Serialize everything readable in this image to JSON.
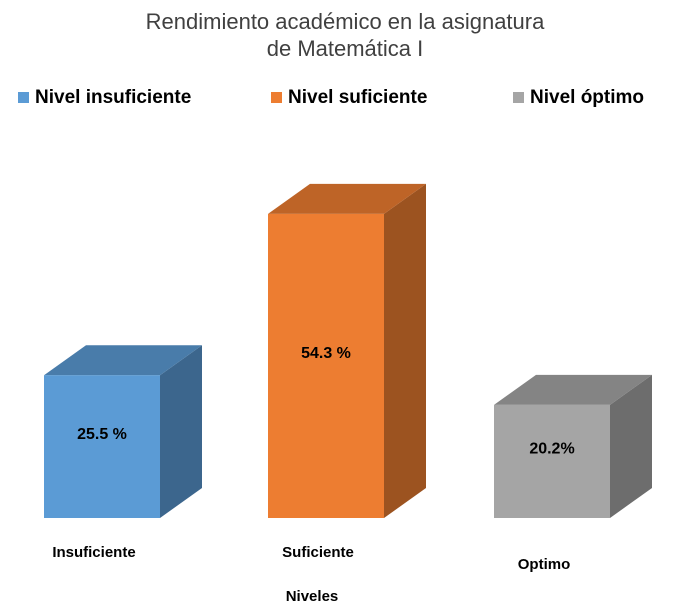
{
  "chart_data": {
    "type": "bar3d",
    "title": "Rendimiento académico en la asignatura de Matemática I",
    "legend": [
      "Nivel insuficiente",
      "Nivel suficiente",
      "Nivel óptimo"
    ],
    "categories": [
      "Insuficiente",
      "Suficiente",
      "Optimo"
    ],
    "values": [
      25.5,
      54.3,
      20.2
    ],
    "value_labels": [
      "25.5 %",
      "54.3 %",
      "20.2%"
    ],
    "colors": [
      "#5b9bd5",
      "#ed7d31",
      "#a5a5a5"
    ],
    "xlabel": "Niveles"
  }
}
